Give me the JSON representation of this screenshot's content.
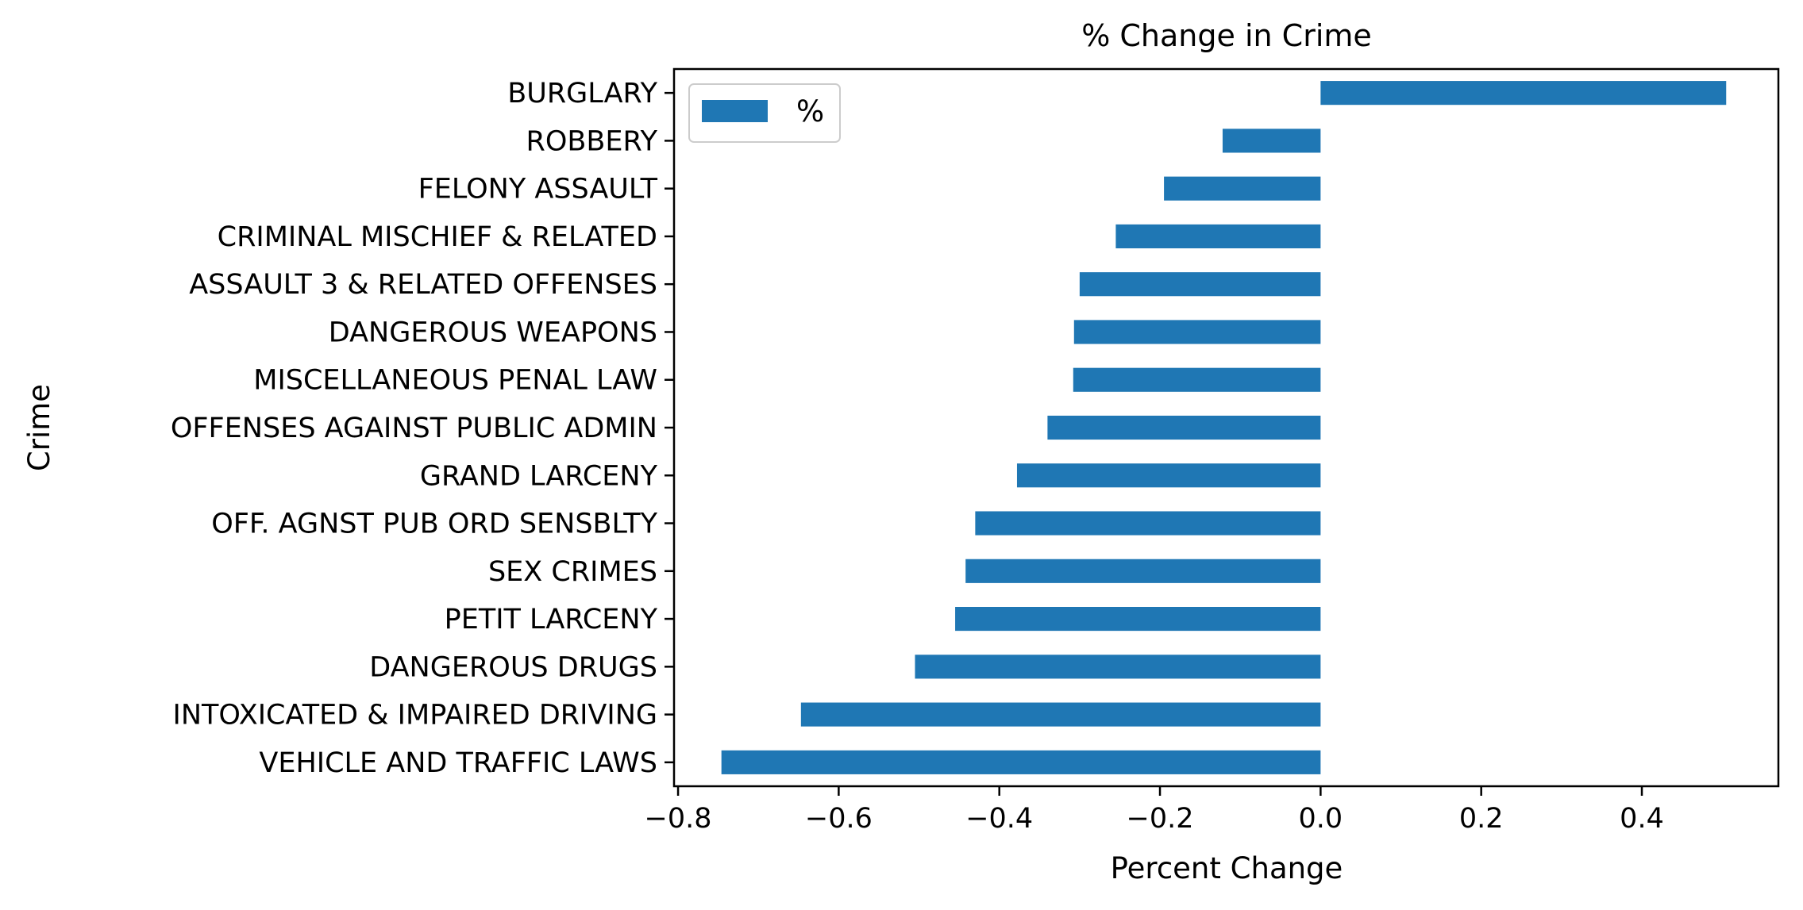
{
  "chart_data": {
    "type": "bar",
    "orientation": "horizontal",
    "title": "% Change in Crime",
    "xlabel": "Percent Change",
    "ylabel": "Crime",
    "xlim": [
      -0.805,
      0.57
    ],
    "xticks": [
      -0.8,
      -0.6,
      -0.4,
      -0.2,
      0.0,
      0.2,
      0.4
    ],
    "xtick_labels": [
      "−0.8",
      "−0.6",
      "−0.4",
      "−0.2",
      "0.0",
      "0.2",
      "0.4"
    ],
    "categories": [
      "BURGLARY",
      "ROBBERY",
      "FELONY ASSAULT",
      "CRIMINAL MISCHIEF & RELATED",
      "ASSAULT 3 & RELATED OFFENSES",
      "DANGEROUS WEAPONS",
      "MISCELLANEOUS PENAL LAW",
      "OFFENSES AGAINST PUBLIC ADMIN",
      "GRAND LARCENY",
      "OFF. AGNST PUB ORD SENSBLTY",
      "SEX CRIMES",
      "PETIT LARCENY",
      "DANGEROUS DRUGS",
      "INTOXICATED & IMPAIRED DRIVING",
      "VEHICLE AND TRAFFIC LAWS"
    ],
    "series": [
      {
        "name": "%",
        "color": "#1f77b4",
        "values": [
          0.505,
          -0.122,
          -0.195,
          -0.255,
          -0.3,
          -0.307,
          -0.308,
          -0.34,
          -0.378,
          -0.43,
          -0.442,
          -0.455,
          -0.505,
          -0.647,
          -0.746
        ]
      }
    ],
    "legend": {
      "position": "top-left",
      "entries": [
        "%"
      ]
    },
    "grid": false
  }
}
